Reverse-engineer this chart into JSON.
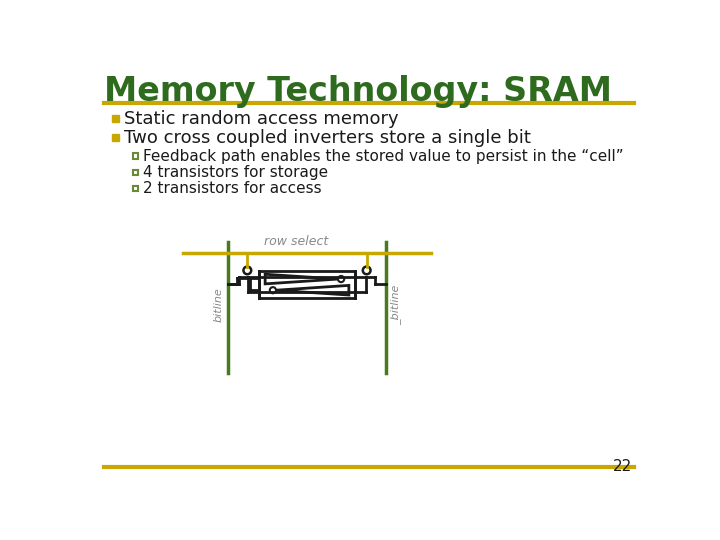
{
  "title": "Memory Technology: SRAM",
  "title_color": "#2E6B1E",
  "title_fontsize": 24,
  "gold_color": "#C8A800",
  "green_color": "#3A6B1A",
  "bg_color": "#FFFFFF",
  "bullet1": "Static random access memory",
  "bullet2": "Two cross coupled inverters store a single bit",
  "sub1": "Feedback path enables the stored value to persist in the “cell”",
  "sub2": "4 transistors for storage",
  "sub3": "2 transistors for access",
  "page_num": "22",
  "bullet_color": "#C8A800",
  "text_color": "#1A1A1A",
  "sub_bullet_color": "#6A8A3A",
  "circuit_green": "#4A7A1E",
  "circuit_gold": "#C8A800",
  "circuit_black": "#1A1A1A"
}
